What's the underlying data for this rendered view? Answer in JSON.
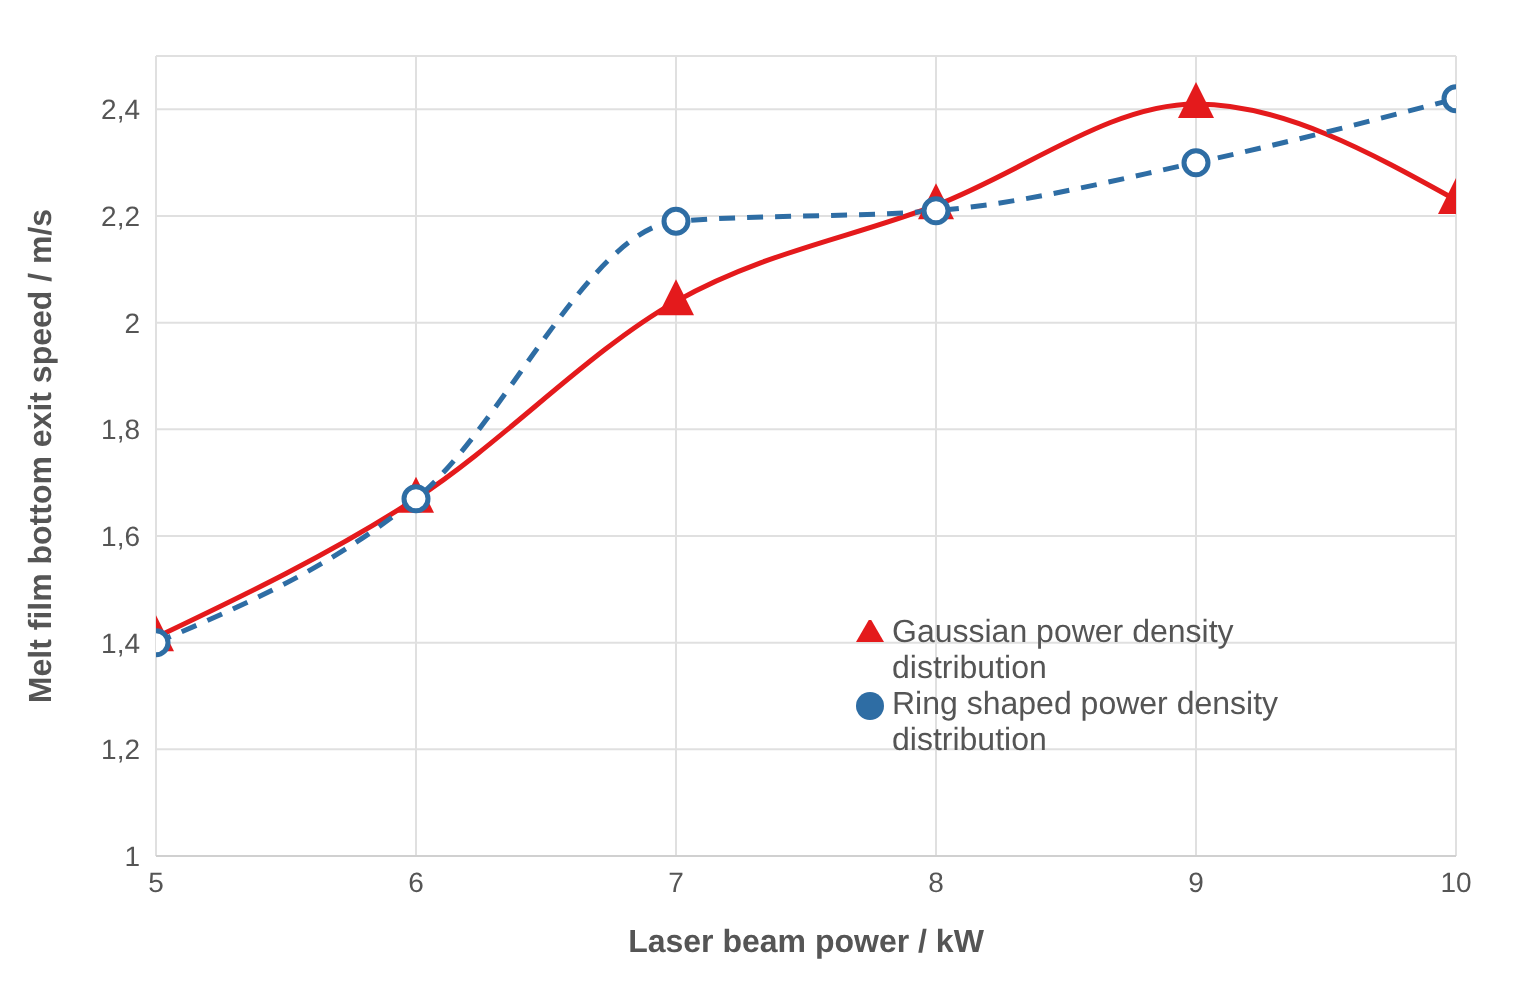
{
  "chart_data": {
    "type": "line",
    "xlabel": "Laser beam power / kW",
    "ylabel": "Melt film bottom exit speed / m/s",
    "x": [
      5,
      6,
      7,
      8,
      9,
      10
    ],
    "xlim": [
      5,
      10
    ],
    "xticks": [
      5,
      6,
      7,
      8,
      9,
      10
    ],
    "ylim": [
      1,
      2.5
    ],
    "yticks": [
      1,
      {
        "value": 1.2,
        "label": "1,2"
      },
      {
        "value": 1.4,
        "label": "1,4"
      },
      {
        "value": 1.6,
        "label": "1,6"
      },
      {
        "value": 1.8,
        "label": "1,8"
      },
      2,
      {
        "value": 2.2,
        "label": "2,2"
      },
      {
        "value": 2.4,
        "label": "2,4"
      }
    ],
    "grid": true,
    "legend": "bottom right",
    "series": [
      {
        "name": "Gaussian power density distribution",
        "color": "#e41a1c",
        "marker": "triangle",
        "line_style": "solid",
        "values": [
          1.41,
          1.67,
          2.04,
          2.22,
          2.41,
          2.23
        ]
      },
      {
        "name": "Ring shaped power density distribution",
        "color": "#2e6da4",
        "marker": "circle",
        "line_style": "dashed",
        "values": [
          1.4,
          1.67,
          2.19,
          2.21,
          2.3,
          2.42
        ]
      }
    ]
  }
}
